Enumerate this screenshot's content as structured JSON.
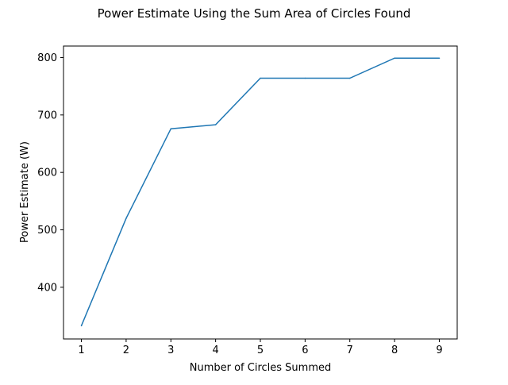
{
  "chart_data": {
    "type": "line",
    "title": "Power Estimate Using the Sum Area of Circles Found",
    "xlabel": "Number of Circles Summed",
    "ylabel": "Power Estimate (W)",
    "xlim": [
      0.6,
      9.4
    ],
    "ylim": [
      310,
      820
    ],
    "xticks": [
      1,
      2,
      3,
      4,
      5,
      6,
      7,
      8,
      9
    ],
    "yticks": [
      400,
      500,
      600,
      700,
      800
    ],
    "grid": false,
    "line_color": "#1f77b4",
    "series": [
      {
        "x": [
          1,
          2,
          3,
          4,
          5,
          6,
          7,
          8,
          9
        ],
        "y": [
          333,
          520,
          676,
          683,
          764,
          764,
          764,
          799,
          799
        ]
      }
    ]
  }
}
